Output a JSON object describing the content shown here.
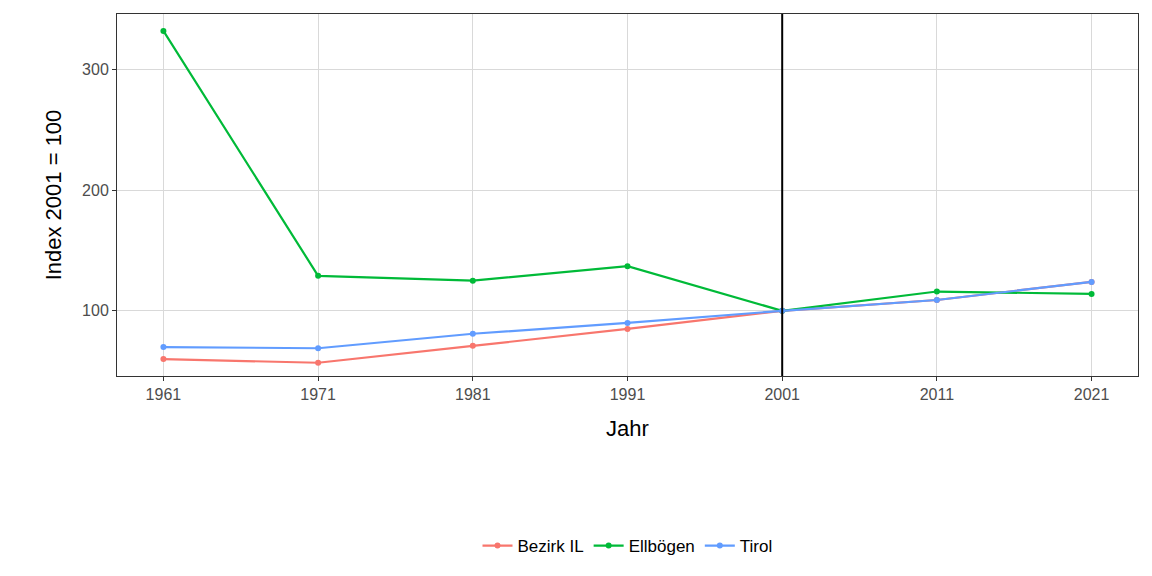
{
  "chart_data": {
    "type": "line",
    "x_label": "Jahr",
    "y_label": "Index 2001 = 100",
    "x": [
      1961,
      1971,
      1981,
      1991,
      2001,
      2011,
      2021
    ],
    "series": [
      {
        "name": "Bezirk IL",
        "color": "#F8766D",
        "values": [
          60,
          57,
          71,
          85,
          100,
          109,
          124
        ]
      },
      {
        "name": "Ellbögen",
        "color": "#00BA38",
        "values": [
          332,
          129,
          125,
          137,
          100,
          116,
          114
        ]
      },
      {
        "name": "Tirol",
        "color": "#619CFF",
        "values": [
          70,
          69,
          81,
          90,
          100,
          109,
          124
        ]
      }
    ],
    "xlim": [
      1958,
      2024
    ],
    "xticks": [
      1961,
      1971,
      1981,
      1991,
      2001,
      2011,
      2021
    ],
    "ylim": [
      46,
      346
    ],
    "yticks": [
      100,
      200,
      300
    ],
    "reference_x": 2001,
    "grid": true,
    "legend": "bottom",
    "marker": "circle"
  }
}
